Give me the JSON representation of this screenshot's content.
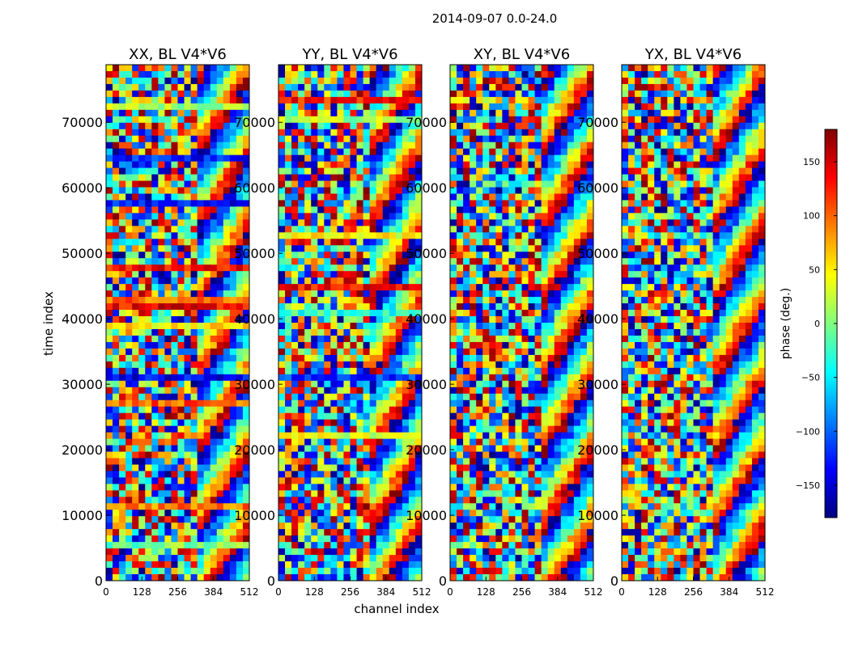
{
  "figure": {
    "suptitle": "2014-09-07 0.0-24.0",
    "ylabel": "time index",
    "xlabel": "channel index"
  },
  "chart_data": {
    "type": "heatmap",
    "panels": [
      {
        "title": "XX, BL V4*V6",
        "x_ticks": [
          "0",
          "128",
          "256",
          "384",
          "512"
        ],
        "y_ticks": [
          "0",
          "10000",
          "20000",
          "30000",
          "40000",
          "50000",
          "60000",
          "70000"
        ]
      },
      {
        "title": "YY, BL V4*V6",
        "x_ticks": [
          "0",
          "128",
          "256",
          "384",
          "512"
        ],
        "y_ticks": [
          "0",
          "10000",
          "20000",
          "30000",
          "40000",
          "50000",
          "60000",
          "70000"
        ]
      },
      {
        "title": "XY, BL V4*V6",
        "x_ticks": [
          "0",
          "128",
          "256",
          "384",
          "512"
        ],
        "y_ticks": [
          "0",
          "10000",
          "20000",
          "30000",
          "40000",
          "50000",
          "60000",
          "70000"
        ]
      },
      {
        "title": "YX, BL V4*V6",
        "x_ticks": [
          "0",
          "128",
          "256",
          "384",
          "512"
        ],
        "y_ticks": [
          "0",
          "10000",
          "20000",
          "30000",
          "40000",
          "50000",
          "60000",
          "70000"
        ]
      }
    ],
    "x_range": [
      0,
      512
    ],
    "y_range": [
      0,
      78800
    ],
    "colorbar": {
      "label": "phase (deg.)",
      "range": [
        -180,
        180
      ],
      "ticks": [
        "150",
        "100",
        "50",
        "0",
        "−50",
        "−100",
        "−150"
      ],
      "tick_values": [
        150,
        100,
        50,
        0,
        -50,
        -100,
        -150
      ],
      "colormap": "jet",
      "colors": [
        "#00007f",
        "#0000ff",
        "#007fff",
        "#00ffff",
        "#7fff7f",
        "#ffff00",
        "#ff7f00",
        "#ff0000",
        "#7f0000"
      ]
    }
  }
}
